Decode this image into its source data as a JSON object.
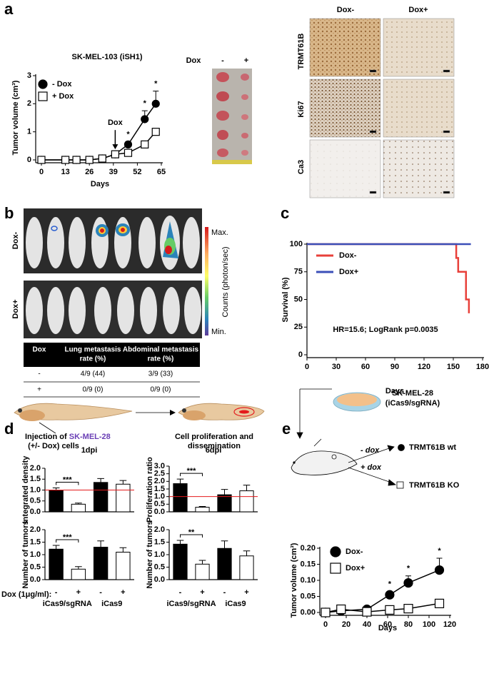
{
  "panel_labels": [
    "a",
    "b",
    "c",
    "d",
    "e"
  ],
  "photo": {
    "label": "Dox",
    "minus": "-",
    "plus": "+"
  },
  "ihc": {
    "columns": [
      "Dox-",
      "Dox+"
    ],
    "rows": [
      "TRMT61B",
      "Ki67",
      "Ca3"
    ]
  },
  "imaging": {
    "rows": [
      "Dox-",
      "Dox+"
    ],
    "colorbar": {
      "max": "Max.",
      "min": "Min.",
      "label": "Counts (photon/sec)"
    }
  },
  "table": {
    "header": [
      "Dox",
      [
        "Lung metastasis",
        "rate (%)"
      ],
      [
        "Abdominal metastasis",
        "rate (%)"
      ]
    ],
    "rows": [
      [
        "-",
        "4/9 (44)",
        "3/9 (33)"
      ],
      [
        "+",
        "0/9 (0)",
        "0/9 (0)"
      ]
    ]
  },
  "zebrafish": {
    "step1": {
      "prefix": "Injection of",
      "cell_line": "SK-MEL-28",
      "suffix": "(+/- Dox) cells"
    },
    "step2": [
      "Cell proliferation and",
      "dissemination"
    ]
  },
  "mouse_model": {
    "cell_line": "SK-MEL-28",
    "construct": "(iCas9/sgRNA)",
    "arrows": [
      "- dox",
      "+ dox"
    ],
    "outcomes": [
      "TRMT61B wt",
      "TRMT61B KO"
    ]
  },
  "chart_data": [
    {
      "type": "line",
      "title": "SK-MEL-103 (iSH1)",
      "title_color": "#5b3ea8",
      "x_label": "Days",
      "y_label": "Tumor volume (cm³)",
      "x": [
        0,
        13,
        19,
        26,
        33,
        40,
        47,
        56,
        62
      ],
      "series": [
        {
          "name": "- Dox",
          "color": "#000000",
          "marker": "circle",
          "fill": "#000000",
          "values": [
            0,
            0,
            0,
            0,
            0.05,
            0.2,
            0.55,
            1.45,
            2.0
          ],
          "errors": [
            0,
            0,
            0,
            0,
            0.02,
            0.05,
            0.1,
            0.3,
            0.45
          ]
        },
        {
          "name": "+ Dox",
          "color": "#000000",
          "marker": "square",
          "fill": "#ffffff",
          "values": [
            0,
            0,
            0,
            0,
            0.05,
            0.2,
            0.25,
            0.55,
            1.0
          ],
          "errors": [
            0,
            0,
            0,
            0,
            0.02,
            0.03,
            0.05,
            0.08,
            0.1
          ]
        }
      ],
      "annotations": [
        {
          "text": "Dox",
          "x": 40,
          "arrow": true
        },
        {
          "text": "*",
          "x": 47
        },
        {
          "text": "*",
          "x": 56
        },
        {
          "text": "*",
          "x": 62
        }
      ],
      "xlim": [
        0,
        65
      ],
      "xticks": [
        0,
        13,
        26,
        39,
        52,
        65
      ],
      "ylim": [
        0,
        3
      ],
      "yticks": [
        0,
        1,
        2,
        3
      ]
    },
    {
      "type": "line",
      "step": true,
      "x_label": "Days",
      "y_label": "Survival (%)",
      "series": [
        {
          "name": "Dox-",
          "color": "#e8403a",
          "x": [
            0,
            153,
            155,
            163,
            166
          ],
          "values": [
            100,
            87.5,
            75,
            50,
            37.5
          ]
        },
        {
          "name": "Dox+",
          "color": "#3b4fb8",
          "x": [
            0,
            168
          ],
          "values": [
            100,
            100
          ]
        }
      ],
      "annotation": "HR=15.6; LogRank p=0.0035",
      "xlim": [
        0,
        180
      ],
      "xticks": [
        0,
        30,
        60,
        90,
        120,
        150,
        180
      ],
      "ylim": [
        0,
        100
      ],
      "yticks": [
        0,
        25,
        50,
        75,
        100
      ]
    },
    {
      "type": "bar",
      "title": "1dpi",
      "y_label": "Integrated density",
      "categories": [
        null,
        null,
        null,
        null
      ],
      "values": [
        1.0,
        0.35,
        1.35,
        1.27
      ],
      "errors": [
        0.1,
        0.05,
        0.18,
        0.17
      ],
      "colors": [
        "#000000",
        "#ffffff",
        "#000000",
        "#ffffff"
      ],
      "reference_line": 1,
      "reference_color": "#e41a1c",
      "significance": "***",
      "ylim": [
        0,
        2
      ],
      "yticks": [
        {
          "value": 0,
          "label": "0.0"
        },
        0.5,
        {
          "value": 1,
          "label": "1.0"
        },
        1.5,
        {
          "value": 2,
          "label": "2.0"
        }
      ]
    },
    {
      "type": "bar",
      "title": "6dpi",
      "y_label": "Proliferation ratio",
      "categories": [
        null,
        null,
        null,
        null
      ],
      "values": [
        1.85,
        0.3,
        1.12,
        1.38
      ],
      "errors": [
        0.3,
        0.05,
        0.35,
        0.37
      ],
      "colors": [
        "#000000",
        "#ffffff",
        "#000000",
        "#ffffff"
      ],
      "reference_line": 1,
      "reference_color": "#e41a1c",
      "significance": "***",
      "ylim": [
        0,
        3
      ],
      "yticks": [
        {
          "value": 0,
          "label": "0.0"
        },
        0.5,
        {
          "value": 1,
          "label": "1.0"
        },
        1.5,
        {
          "value": 2,
          "label": "2.0"
        },
        2.5,
        {
          "value": 3,
          "label": "3.0"
        }
      ]
    },
    {
      "type": "bar",
      "y_label": "Number of tumors",
      "x_label": "Dox (1μg/ml):",
      "categories": [
        "-",
        "+",
        "-",
        "+"
      ],
      "groups": [
        "iCas9/sgRNA",
        "iCas9"
      ],
      "values": [
        1.22,
        0.42,
        1.3,
        1.1
      ],
      "errors": [
        0.15,
        0.1,
        0.25,
        0.18
      ],
      "colors": [
        "#000000",
        "#ffffff",
        "#000000",
        "#ffffff"
      ],
      "significance": "***",
      "ylim": [
        0,
        2
      ],
      "yticks": [
        {
          "value": 0,
          "label": "0.0"
        },
        0.5,
        {
          "value": 1,
          "label": "1.0"
        },
        1.5,
        {
          "value": 2,
          "label": "2.0"
        }
      ]
    },
    {
      "type": "bar",
      "y_label": "Number of tumors",
      "categories": [
        "-",
        "+",
        "-",
        "+"
      ],
      "groups": [
        "iCas9/sgRNA",
        "iCas9"
      ],
      "values": [
        1.42,
        0.62,
        1.25,
        0.95
      ],
      "errors": [
        0.15,
        0.15,
        0.3,
        0.2
      ],
      "colors": [
        "#000000",
        "#ffffff",
        "#000000",
        "#ffffff"
      ],
      "significance": "**",
      "ylim": [
        0,
        2
      ],
      "yticks": [
        {
          "value": 0,
          "label": "0.0"
        },
        0.5,
        {
          "value": 1,
          "label": "1.0"
        },
        1.5,
        {
          "value": 2,
          "label": "2.0"
        }
      ]
    },
    {
      "type": "line",
      "x_label": "Days",
      "y_label": "Tumor volume (cm³)",
      "x": [
        0,
        15,
        40,
        62,
        80,
        110
      ],
      "series": [
        {
          "name": "Dox-",
          "color": "#000000",
          "marker": "circle",
          "fill": "#000000",
          "values": [
            0,
            0.005,
            0.01,
            0.055,
            0.092,
            0.132
          ],
          "errors": [
            0.005,
            0.003,
            0.003,
            0.01,
            0.022,
            0.037
          ]
        },
        {
          "name": "Dox+",
          "color": "#000000",
          "marker": "square",
          "fill": "#ffffff",
          "values": [
            0,
            0.01,
            0.002,
            0.008,
            0.012,
            0.028
          ],
          "errors": [
            0.003,
            0.003,
            0.002,
            0.003,
            0.005,
            0.01
          ]
        }
      ],
      "annotations": [
        {
          "text": "*",
          "x": 62
        },
        {
          "text": "*",
          "x": 80
        },
        {
          "text": "*",
          "x": 110
        }
      ],
      "xlim": [
        0,
        120
      ],
      "xticks": [
        0,
        20,
        40,
        60,
        80,
        100,
        120
      ],
      "ylim": [
        0,
        0.2
      ],
      "yticks": [
        {
          "value": 0,
          "label": "0.00"
        },
        0.05,
        {
          "value": 0.1,
          "label": "0.10"
        },
        0.15,
        {
          "value": 0.2,
          "label": "0.20"
        }
      ]
    }
  ]
}
